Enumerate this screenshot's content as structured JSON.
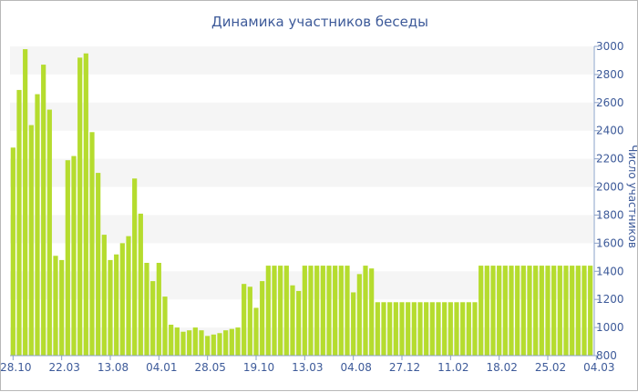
{
  "chart_data": {
    "type": "bar",
    "title": "Динамика участников беседы",
    "ylabel": "Число участников",
    "xlabel": "",
    "ylim": [
      800,
      3000
    ],
    "yticks": [
      800,
      1000,
      1200,
      1400,
      1600,
      1800,
      2000,
      2200,
      2400,
      2600,
      2800,
      3000
    ],
    "y_axis_side": "right",
    "grid": "alternating horizontal bands",
    "bar_color": "#b5dc2e",
    "band_color": "#f5f5f5",
    "text_color": "#3d5a99",
    "x_tick_labels": [
      {
        "label": "28.10",
        "index": 0
      },
      {
        "label": "22.03",
        "index": 8
      },
      {
        "label": "13.08",
        "index": 16
      },
      {
        "label": "04.01",
        "index": 24
      },
      {
        "label": "28.05",
        "index": 32
      },
      {
        "label": "19.10",
        "index": 40
      },
      {
        "label": "13.03",
        "index": 48
      },
      {
        "label": "04.08",
        "index": 56
      },
      {
        "label": "27.12",
        "index": 64
      },
      {
        "label": "11.02",
        "index": 72
      },
      {
        "label": "18.02",
        "index": 80
      },
      {
        "label": "25.02",
        "index": 88
      },
      {
        "label": "04.03",
        "index": 96
      }
    ],
    "values": [
      2280,
      2690,
      2980,
      2440,
      2660,
      2870,
      2550,
      1510,
      1480,
      2190,
      2220,
      2920,
      2950,
      2390,
      2100,
      1660,
      1480,
      1520,
      1600,
      1650,
      2060,
      1810,
      1460,
      1330,
      1460,
      1220,
      1020,
      1000,
      970,
      980,
      1000,
      980,
      940,
      950,
      960,
      980,
      990,
      1000,
      1310,
      1290,
      1140,
      1330,
      1440,
      1440,
      1440,
      1440,
      1300,
      1260,
      1440,
      1440,
      1440,
      1440,
      1440,
      1440,
      1440,
      1440,
      1250,
      1380,
      1440,
      1420,
      1180,
      1180,
      1180,
      1180,
      1180,
      1180,
      1180,
      1180,
      1180,
      1180,
      1180,
      1180,
      1180,
      1180,
      1180,
      1180,
      1180,
      1440,
      1440,
      1440,
      1440,
      1440,
      1440,
      1440,
      1440,
      1440,
      1440,
      1440,
      1440,
      1440,
      1440,
      1440,
      1440,
      1440,
      1440,
      1440
    ]
  }
}
